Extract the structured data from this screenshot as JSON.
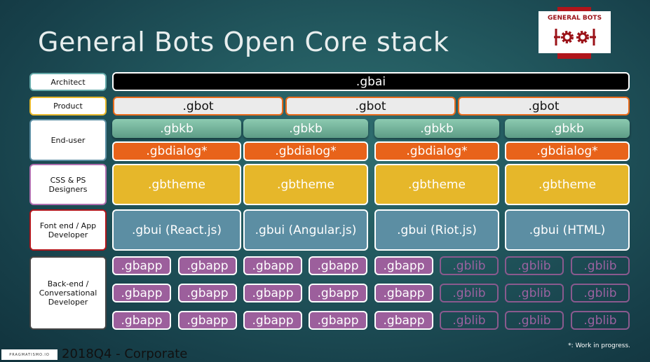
{
  "title": "General Bots Open Core stack",
  "logo": {
    "text": "GENERAL BOTS",
    "colors": {
      "red": "#b0151b"
    }
  },
  "labels": {
    "architect": "Architect",
    "product": "Product",
    "end_user": "End-user",
    "designers": "CSS & PS Designers",
    "frontend": "Font end / App Developer",
    "backend": "Back-end / Conversational Developer"
  },
  "stack": {
    "gbai": ".gbai",
    "gbot": [
      ".gbot",
      ".gbot",
      ".gbot"
    ],
    "gbkb": [
      ".gbkb",
      ".gbkb",
      ".gbkb",
      ".gbkb"
    ],
    "gbdialog": [
      ".gbdialog*",
      ".gbdialog*",
      ".gbdialog*",
      ".gbdialog*"
    ],
    "gbtheme": [
      ".gbtheme",
      ".gbtheme",
      ".gbtheme",
      ".gbtheme"
    ],
    "gbui": [
      ".gbui (React.js)",
      ".gbui (Angular.js)",
      ".gbui (Riot.js)",
      ".gbui (HTML)"
    ],
    "backend_rows": [
      [
        ".gbapp",
        ".gbapp",
        ".gbapp",
        ".gbapp",
        ".gbapp",
        ".gblib",
        ".gblib",
        ".gblib"
      ],
      [
        ".gbapp",
        ".gbapp",
        ".gbapp",
        ".gbapp",
        ".gbapp",
        ".gblib",
        ".gblib",
        ".gblib"
      ],
      [
        ".gbapp",
        ".gbapp",
        ".gbapp",
        ".gbapp",
        ".gbapp",
        ".gblib",
        ".gblib",
        ".gblib"
      ]
    ]
  },
  "footer": {
    "company": "PRAGMATISMO.IO",
    "text": "2018Q4 - Corporate",
    "note": "*: Work in progress."
  }
}
